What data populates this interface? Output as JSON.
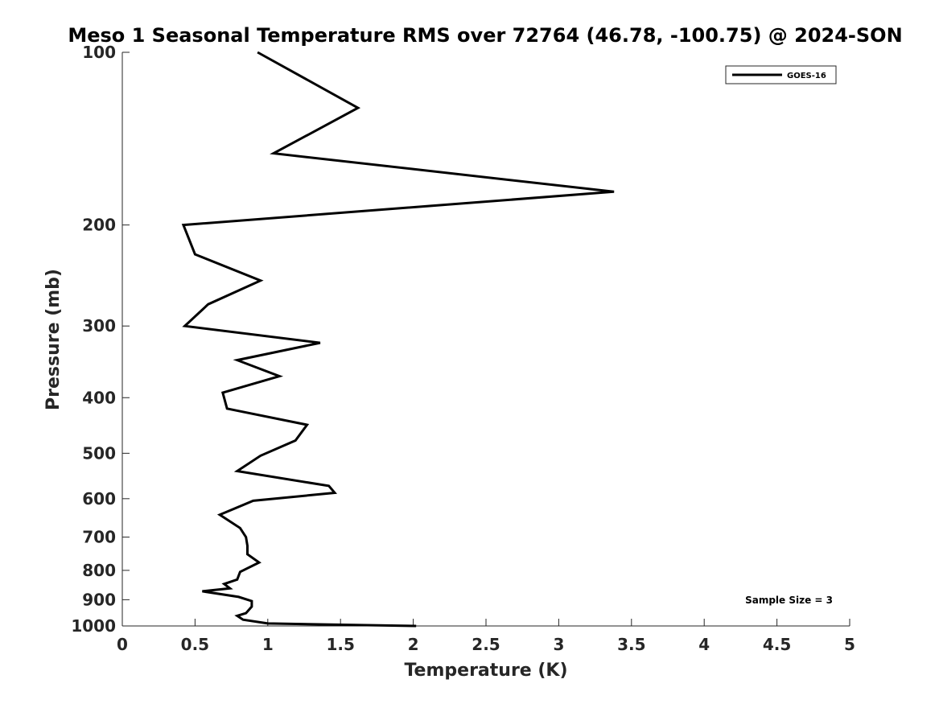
{
  "chart_data": {
    "type": "line",
    "title": "Meso 1 Seasonal Temperature RMS over 72764 (46.78, -100.75) @ 2024-SON",
    "xlabel": "Temperature (K)",
    "ylabel": "Pressure (mb)",
    "xlim": [
      0,
      5
    ],
    "ylim": [
      100,
      1000
    ],
    "y_scale": "log",
    "y_reversed": true,
    "x_ticks": [
      "0",
      "0.5",
      "1",
      "1.5",
      "2",
      "2.5",
      "3",
      "3.5",
      "4",
      "4.5",
      "5"
    ],
    "y_ticks": [
      "100",
      "200",
      "300",
      "400",
      "500",
      "600",
      "700",
      "800",
      "900",
      "1000"
    ],
    "legend_position": "top-right",
    "grid": false,
    "series": [
      {
        "name": "GOES-16",
        "color": "#000000",
        "points": [
          {
            "x": 0.93,
            "y": 100
          },
          {
            "x": 1.62,
            "y": 125
          },
          {
            "x": 1.04,
            "y": 150
          },
          {
            "x": 3.38,
            "y": 175
          },
          {
            "x": 0.42,
            "y": 200
          },
          {
            "x": 0.5,
            "y": 225
          },
          {
            "x": 0.95,
            "y": 250
          },
          {
            "x": 0.59,
            "y": 275
          },
          {
            "x": 0.43,
            "y": 300
          },
          {
            "x": 1.36,
            "y": 321
          },
          {
            "x": 0.79,
            "y": 344
          },
          {
            "x": 1.08,
            "y": 367
          },
          {
            "x": 0.69,
            "y": 392
          },
          {
            "x": 0.72,
            "y": 418
          },
          {
            "x": 1.27,
            "y": 446
          },
          {
            "x": 1.19,
            "y": 475
          },
          {
            "x": 0.95,
            "y": 505
          },
          {
            "x": 0.79,
            "y": 537
          },
          {
            "x": 1.42,
            "y": 570
          },
          {
            "x": 1.46,
            "y": 586
          },
          {
            "x": 0.9,
            "y": 605
          },
          {
            "x": 0.67,
            "y": 640
          },
          {
            "x": 0.81,
            "y": 675
          },
          {
            "x": 0.85,
            "y": 700
          },
          {
            "x": 0.86,
            "y": 725
          },
          {
            "x": 0.86,
            "y": 750
          },
          {
            "x": 0.94,
            "y": 775
          },
          {
            "x": 0.81,
            "y": 805
          },
          {
            "x": 0.79,
            "y": 830
          },
          {
            "x": 0.7,
            "y": 845
          },
          {
            "x": 0.74,
            "y": 860
          },
          {
            "x": 0.55,
            "y": 870
          },
          {
            "x": 0.8,
            "y": 890
          },
          {
            "x": 0.89,
            "y": 905
          },
          {
            "x": 0.89,
            "y": 925
          },
          {
            "x": 0.85,
            "y": 950
          },
          {
            "x": 0.79,
            "y": 960
          },
          {
            "x": 0.83,
            "y": 975
          },
          {
            "x": 1.0,
            "y": 990
          },
          {
            "x": 2.02,
            "y": 1000
          }
        ]
      }
    ],
    "annotations": [
      {
        "text": "Sample Size = 3",
        "position": "bottom-right"
      }
    ]
  }
}
